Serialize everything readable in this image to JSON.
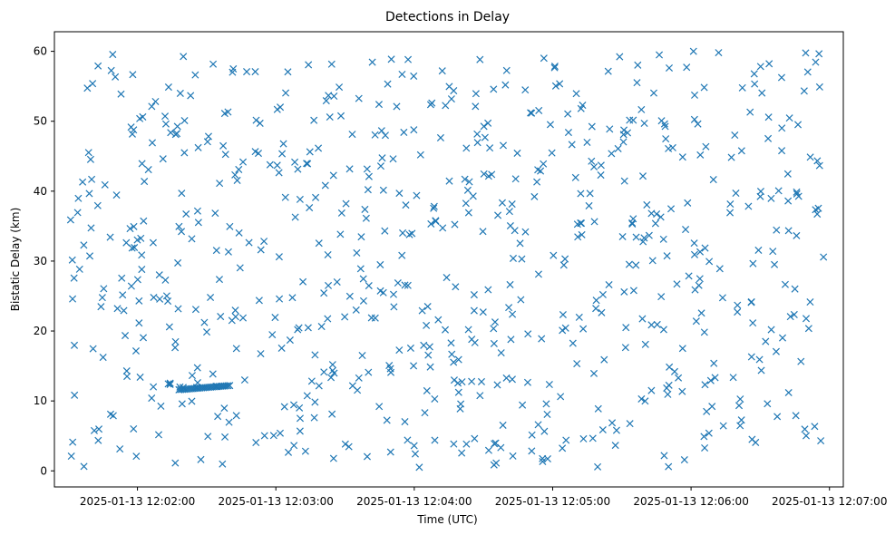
{
  "chart_data": {
    "type": "scatter",
    "title": "Detections in Delay",
    "xlabel": "Time (UTC)",
    "ylabel": "Bistatic Delay (km)",
    "marker": "x",
    "color": "#1f77b4",
    "grid": false,
    "legend": "none",
    "xlim": [
      "2025-01-13 12:01:24",
      "2025-01-13 12:07:06"
    ],
    "ylim": [
      -2.3,
      62.8
    ],
    "x_ticks": [
      "2025-01-13 12:02:00",
      "2025-01-13 12:03:00",
      "2025-01-13 12:04:00",
      "2025-01-13 12:05:00",
      "2025-01-13 12:06:00",
      "2025-01-13 12:07:00"
    ],
    "y_ticks": [
      0,
      10,
      20,
      30,
      40,
      50,
      60
    ],
    "track": {
      "x_start": "2025-01-13 12:02:18",
      "x_end": "2025-01-13 12:02:40",
      "y_start": 11.6,
      "y_end": 12.2,
      "count": 30
    },
    "series": [
      {
        "x_start": "2025-01-13 12:01:30",
        "x_end": "2025-01-13 12:06:58",
        "y_min": 0.5,
        "y_max": 60.0,
        "count": 720,
        "seed": 20250113
      }
    ]
  }
}
